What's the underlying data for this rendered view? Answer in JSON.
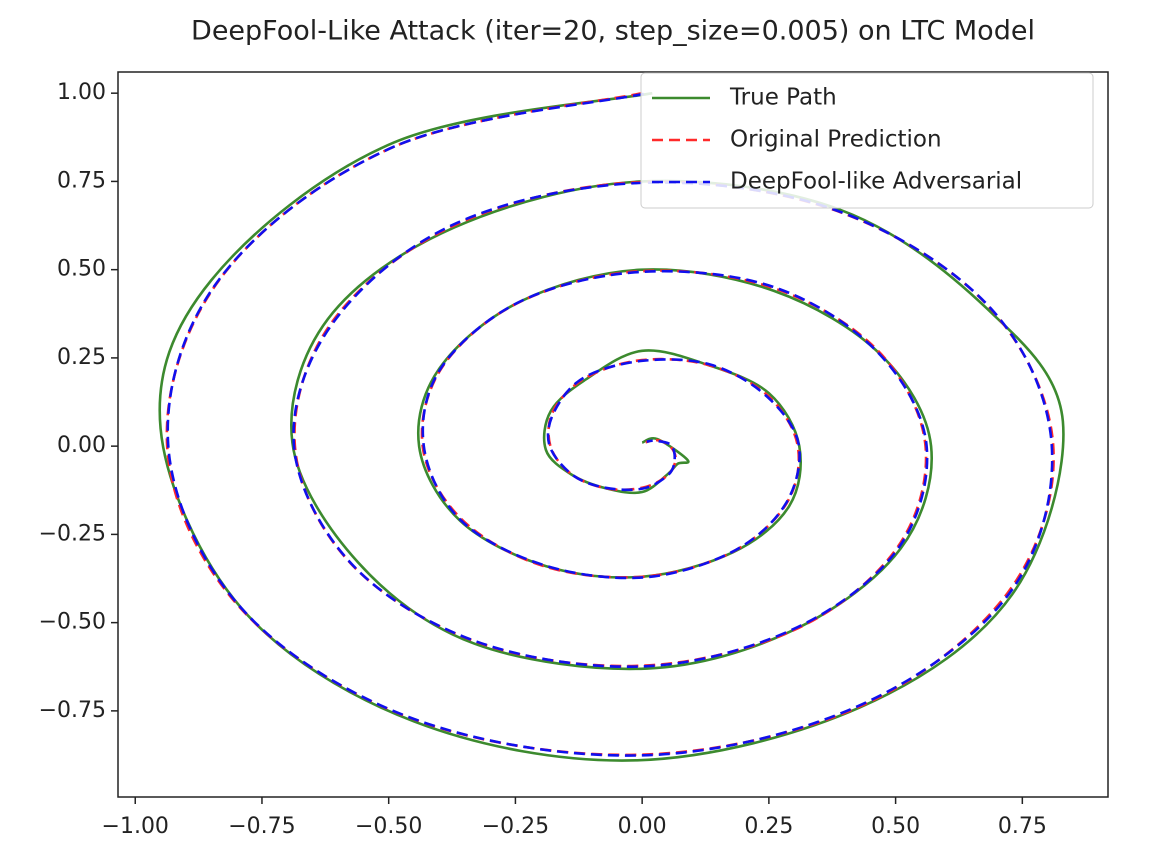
{
  "chart_data": {
    "type": "line",
    "title": "DeepFool-Like Attack (iter=20, step_size=0.005) on LTC Model",
    "xlim": [
      -1.034,
      0.919
    ],
    "ylim": [
      -0.994,
      1.06
    ],
    "xticks": [
      {
        "value": -1,
        "label": "−1.00"
      },
      {
        "value": -0.75,
        "label": "−0.75"
      },
      {
        "value": -0.5,
        "label": "−0.50"
      },
      {
        "value": -0.25,
        "label": "−0.25"
      },
      {
        "value": 0,
        "label": "0.00"
      },
      {
        "value": 0.25,
        "label": "0.25"
      },
      {
        "value": 0.5,
        "label": "0.50"
      },
      {
        "value": 0.75,
        "label": "0.75"
      }
    ],
    "yticks": [
      {
        "value": -0.75,
        "label": "−0.75"
      },
      {
        "value": -0.5,
        "label": "−0.50"
      },
      {
        "value": -0.25,
        "label": "−0.25"
      },
      {
        "value": 0,
        "label": "0.00"
      },
      {
        "value": 0.25,
        "label": "0.25"
      },
      {
        "value": 0.5,
        "label": "0.50"
      },
      {
        "value": 0.75,
        "label": "0.75"
      },
      {
        "value": 1,
        "label": "1.00"
      }
    ],
    "grid": false,
    "legend": "upper right",
    "series": [
      {
        "name": "True Path",
        "color": "#3c8a2e",
        "dash": false,
        "x": [
          0.02,
          -0.49,
          -0.85,
          -0.95,
          -0.79,
          -0.45,
          -0.01,
          0.43,
          0.73,
          0.83,
          0.68,
          0.39,
          0.0,
          -0.37,
          -0.62,
          -0.69,
          -0.56,
          -0.33,
          0.01,
          0.3,
          0.51,
          0.57,
          0.47,
          0.26,
          0.0,
          -0.24,
          -0.4,
          -0.44,
          -0.36,
          -0.19,
          0.0,
          0.18,
          0.29,
          0.31,
          0.25,
          0.13,
          0.0,
          -0.11,
          -0.18,
          -0.19,
          -0.14,
          -0.07,
          0.0,
          0.05,
          0.07,
          0.09,
          0.03,
          0.0
        ],
        "values": [
          1.0,
          0.86,
          0.47,
          0.05,
          -0.46,
          -0.78,
          -0.89,
          -0.74,
          -0.42,
          0.07,
          0.39,
          0.67,
          0.75,
          0.62,
          0.36,
          0.01,
          -0.33,
          -0.56,
          -0.63,
          -0.52,
          -0.29,
          0.0,
          0.26,
          0.44,
          0.5,
          0.41,
          0.22,
          0.0,
          -0.21,
          -0.34,
          -0.37,
          -0.3,
          -0.17,
          0.0,
          0.15,
          0.23,
          0.27,
          0.19,
          0.1,
          -0.01,
          -0.08,
          -0.12,
          -0.13,
          -0.08,
          -0.05,
          -0.04,
          0.02,
          0.01
        ]
      },
      {
        "name": "Original Prediction",
        "color": "#ff2a2a",
        "dash": true,
        "x": [
          0,
          -0.49,
          -0.83,
          -0.937,
          -0.793,
          -0.448,
          0,
          0.427,
          0.721,
          0.811,
          0.684,
          0.385,
          0,
          -0.364,
          -0.611,
          -0.685,
          -0.575,
          -0.322,
          0,
          0.301,
          0.502,
          0.559,
          0.466,
          0.259,
          0,
          -0.238,
          -0.393,
          -0.433,
          -0.357,
          -0.196,
          0,
          0.175,
          0.284,
          0.307,
          0.248,
          0.133,
          0,
          -0.112,
          -0.175,
          -0.181,
          -0.139,
          -0.07,
          0,
          0.049,
          0.066,
          0.055,
          0.029,
          0.007
        ],
        "values": [
          1.0,
          0.848,
          0.479,
          0,
          -0.458,
          -0.775,
          -0.874,
          -0.739,
          -0.416,
          0,
          0.395,
          0.666,
          0.748,
          0.63,
          0.353,
          0,
          -0.332,
          -0.557,
          -0.622,
          -0.52,
          -0.29,
          0,
          0.269,
          0.448,
          0.496,
          0.411,
          0.227,
          0,
          -0.206,
          -0.339,
          -0.37,
          -0.302,
          -0.164,
          0,
          0.143,
          0.229,
          0.244,
          0.193,
          0.101,
          0,
          -0.08,
          -0.12,
          -0.118,
          -0.084,
          -0.038,
          0,
          0.017,
          0.011
        ]
      },
      {
        "name": "DeepFool-like Adversarial",
        "color": "#1010ee",
        "dash": true,
        "x": [
          0.003,
          -0.487,
          -0.832,
          -0.935,
          -0.79,
          -0.45,
          0.002,
          0.425,
          0.724,
          0.808,
          0.686,
          0.383,
          0.002,
          -0.366,
          -0.609,
          -0.687,
          -0.573,
          -0.324,
          0.002,
          0.299,
          0.504,
          0.561,
          0.464,
          0.261,
          0.002,
          -0.236,
          -0.395,
          -0.431,
          -0.359,
          -0.194,
          0.002,
          0.177,
          0.282,
          0.309,
          0.246,
          0.135,
          0.002,
          -0.114,
          -0.173,
          -0.183,
          -0.137,
          -0.072,
          0.002,
          0.051,
          0.064,
          0.057,
          0.027,
          0.009
        ],
        "values": [
          0.998,
          0.85,
          0.477,
          0.004,
          -0.46,
          -0.773,
          -0.876,
          -0.737,
          -0.418,
          0.003,
          0.393,
          0.668,
          0.746,
          0.632,
          0.351,
          0.003,
          -0.334,
          -0.555,
          -0.624,
          -0.518,
          -0.292,
          0.003,
          0.267,
          0.45,
          0.494,
          0.413,
          0.225,
          0.003,
          -0.208,
          -0.337,
          -0.372,
          -0.3,
          -0.166,
          0.003,
          0.141,
          0.231,
          0.242,
          0.195,
          0.099,
          0.003,
          -0.082,
          -0.118,
          -0.12,
          -0.082,
          -0.04,
          0.003,
          0.015,
          0.013
        ]
      }
    ]
  }
}
